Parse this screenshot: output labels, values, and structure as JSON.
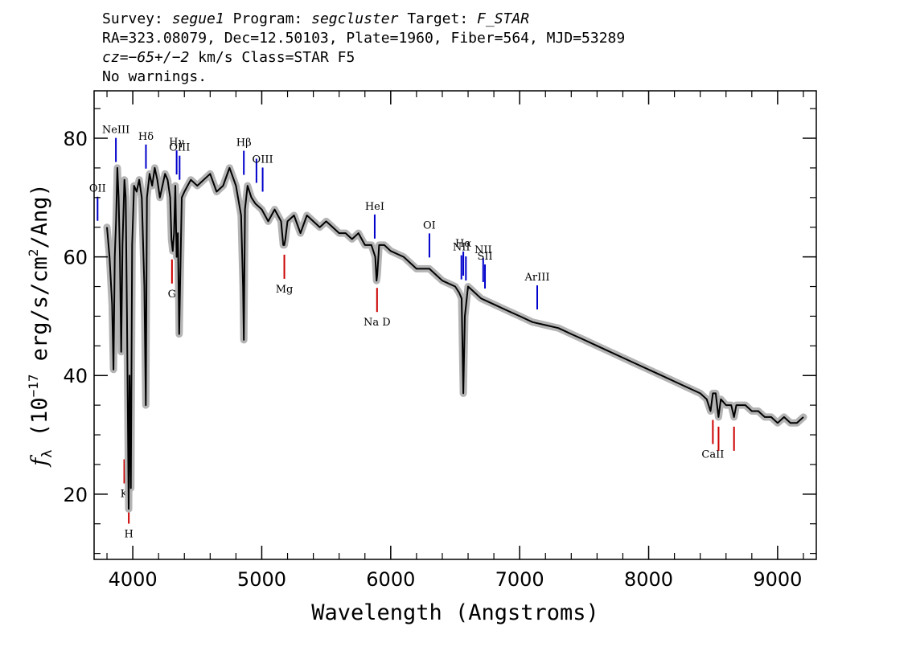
{
  "header": {
    "survey_label": "Survey: ",
    "survey": "segue1",
    "program_label": " Program: ",
    "program": "segcluster",
    "target_label": " Target: ",
    "target": "F_STAR",
    "line2": "RA=323.08079, Dec=12.50103, Plate=1960, Fiber=564, MJD=53289",
    "cz_label": "cz",
    "cz_value": "=−65+/−2",
    "cz_rest": " km/s Class=STAR F5",
    "line4": "No warnings."
  },
  "chart_data": {
    "type": "line",
    "xlabel": "Wavelength (Angstroms)",
    "ylabel": "f_λ (10^-17 erg/s/cm^2/Ang)",
    "xlim": [
      3700,
      9300
    ],
    "ylim": [
      9,
      88
    ],
    "x_ticks": [
      4000,
      5000,
      6000,
      7000,
      8000,
      9000
    ],
    "x_tick_labels": [
      "4000",
      "5000",
      "6000",
      "7000",
      "8000",
      "9000"
    ],
    "y_ticks": [
      20,
      40,
      60,
      80
    ],
    "y_tick_labels": [
      "20",
      "40",
      "60",
      "80"
    ],
    "grid": false,
    "colors": {
      "flux": "#000000",
      "error": "#b4b4b4",
      "emission": "#0000cc",
      "absorption": "#cc0000"
    },
    "series": [
      {
        "role": "flux",
        "x": [
          3800,
          3820,
          3840,
          3850,
          3860,
          3870,
          3880,
          3890,
          3900,
          3910,
          3920,
          3935,
          3945,
          3955,
          3968,
          3975,
          3985,
          3995,
          4010,
          4030,
          4050,
          4070,
          4090,
          4101,
          4110,
          4130,
          4150,
          4170,
          4190,
          4210,
          4230,
          4250,
          4270,
          4290,
          4300,
          4310,
          4320,
          4330,
          4340,
          4350,
          4360,
          4380,
          4400,
          4450,
          4500,
          4550,
          4600,
          4650,
          4700,
          4750,
          4800,
          4840,
          4855,
          4861,
          4870,
          4890,
          4920,
          4950,
          5000,
          5050,
          5100,
          5150,
          5167,
          5175,
          5183,
          5200,
          5250,
          5300,
          5350,
          5400,
          5450,
          5500,
          5550,
          5600,
          5650,
          5700,
          5750,
          5800,
          5850,
          5880,
          5890,
          5896,
          5910,
          5950,
          6000,
          6100,
          6200,
          6300,
          6400,
          6500,
          6530,
          6550,
          6563,
          6575,
          6600,
          6650,
          6700,
          6800,
          6900,
          7000,
          7100,
          7200,
          7300,
          7400,
          7500,
          7600,
          7700,
          7800,
          7900,
          8000,
          8100,
          8200,
          8300,
          8400,
          8450,
          8480,
          8498,
          8520,
          8542,
          8560,
          8600,
          8640,
          8662,
          8680,
          8700,
          8750,
          8800,
          8850,
          8900,
          8950,
          9000,
          9050,
          9100,
          9150,
          9200
        ],
        "y": [
          65,
          60,
          52,
          41,
          60,
          66,
          75,
          70,
          60,
          44,
          62,
          73,
          70,
          50,
          17.5,
          40,
          21,
          62,
          72,
          71,
          73,
          70,
          55,
          35,
          70,
          74,
          72,
          75,
          73,
          70,
          72,
          74,
          73,
          70,
          63,
          61,
          64,
          72,
          60,
          64,
          47,
          70,
          71,
          73,
          72,
          73,
          74,
          71,
          72,
          75,
          72,
          67,
          55,
          46,
          68,
          72,
          70,
          69,
          68,
          66,
          68,
          66,
          62,
          62,
          63,
          66,
          67,
          64,
          67,
          66,
          65,
          66,
          65,
          64,
          64,
          63,
          64,
          62,
          62,
          60,
          56,
          57,
          62,
          62,
          61,
          60,
          58,
          58,
          56,
          55,
          54,
          53,
          37,
          50,
          55,
          54,
          53,
          52,
          51,
          50,
          49,
          48.5,
          48,
          47,
          46,
          45,
          44,
          43,
          42,
          41,
          40,
          39,
          38,
          37,
          36,
          34,
          37,
          37,
          33,
          36,
          35,
          35,
          33,
          35,
          35,
          35,
          34,
          34,
          33,
          33,
          32,
          33,
          32,
          32,
          33
        ]
      }
    ],
    "emission_lines": [
      {
        "label": "OII",
        "wavelength": 3727
      },
      {
        "label": "NeIII",
        "wavelength": 3869
      },
      {
        "label": "Hδ",
        "wavelength": 4102
      },
      {
        "label": "Hγ",
        "wavelength": 4340
      },
      {
        "label": "OIII",
        "wavelength": 4363
      },
      {
        "label": "Hβ",
        "wavelength": 4861
      },
      {
        "label": "",
        "wavelength": 4959
      },
      {
        "label": "OIII",
        "wavelength": 5007
      },
      {
        "label": "HeI",
        "wavelength": 5876
      },
      {
        "label": "OI",
        "wavelength": 6300
      },
      {
        "label": "NII",
        "wavelength": 6548
      },
      {
        "label": "Hα",
        "wavelength": 6563
      },
      {
        "label": "",
        "wavelength": 6583
      },
      {
        "label": "NII",
        "wavelength": 6717
      },
      {
        "label": "SII",
        "wavelength": 6731
      },
      {
        "label": "ArIII",
        "wavelength": 7136
      }
    ],
    "absorption_lines": [
      {
        "label": "K",
        "wavelength": 3934
      },
      {
        "label": "H",
        "wavelength": 3969
      },
      {
        "label": "G",
        "wavelength": 4304
      },
      {
        "label": "Mg",
        "wavelength": 5175
      },
      {
        "label": "Na D",
        "wavelength": 5894
      },
      {
        "label": "CaII",
        "wavelength": 8498
      },
      {
        "label": "",
        "wavelength": 8542
      },
      {
        "label": "",
        "wavelength": 8662
      }
    ]
  }
}
